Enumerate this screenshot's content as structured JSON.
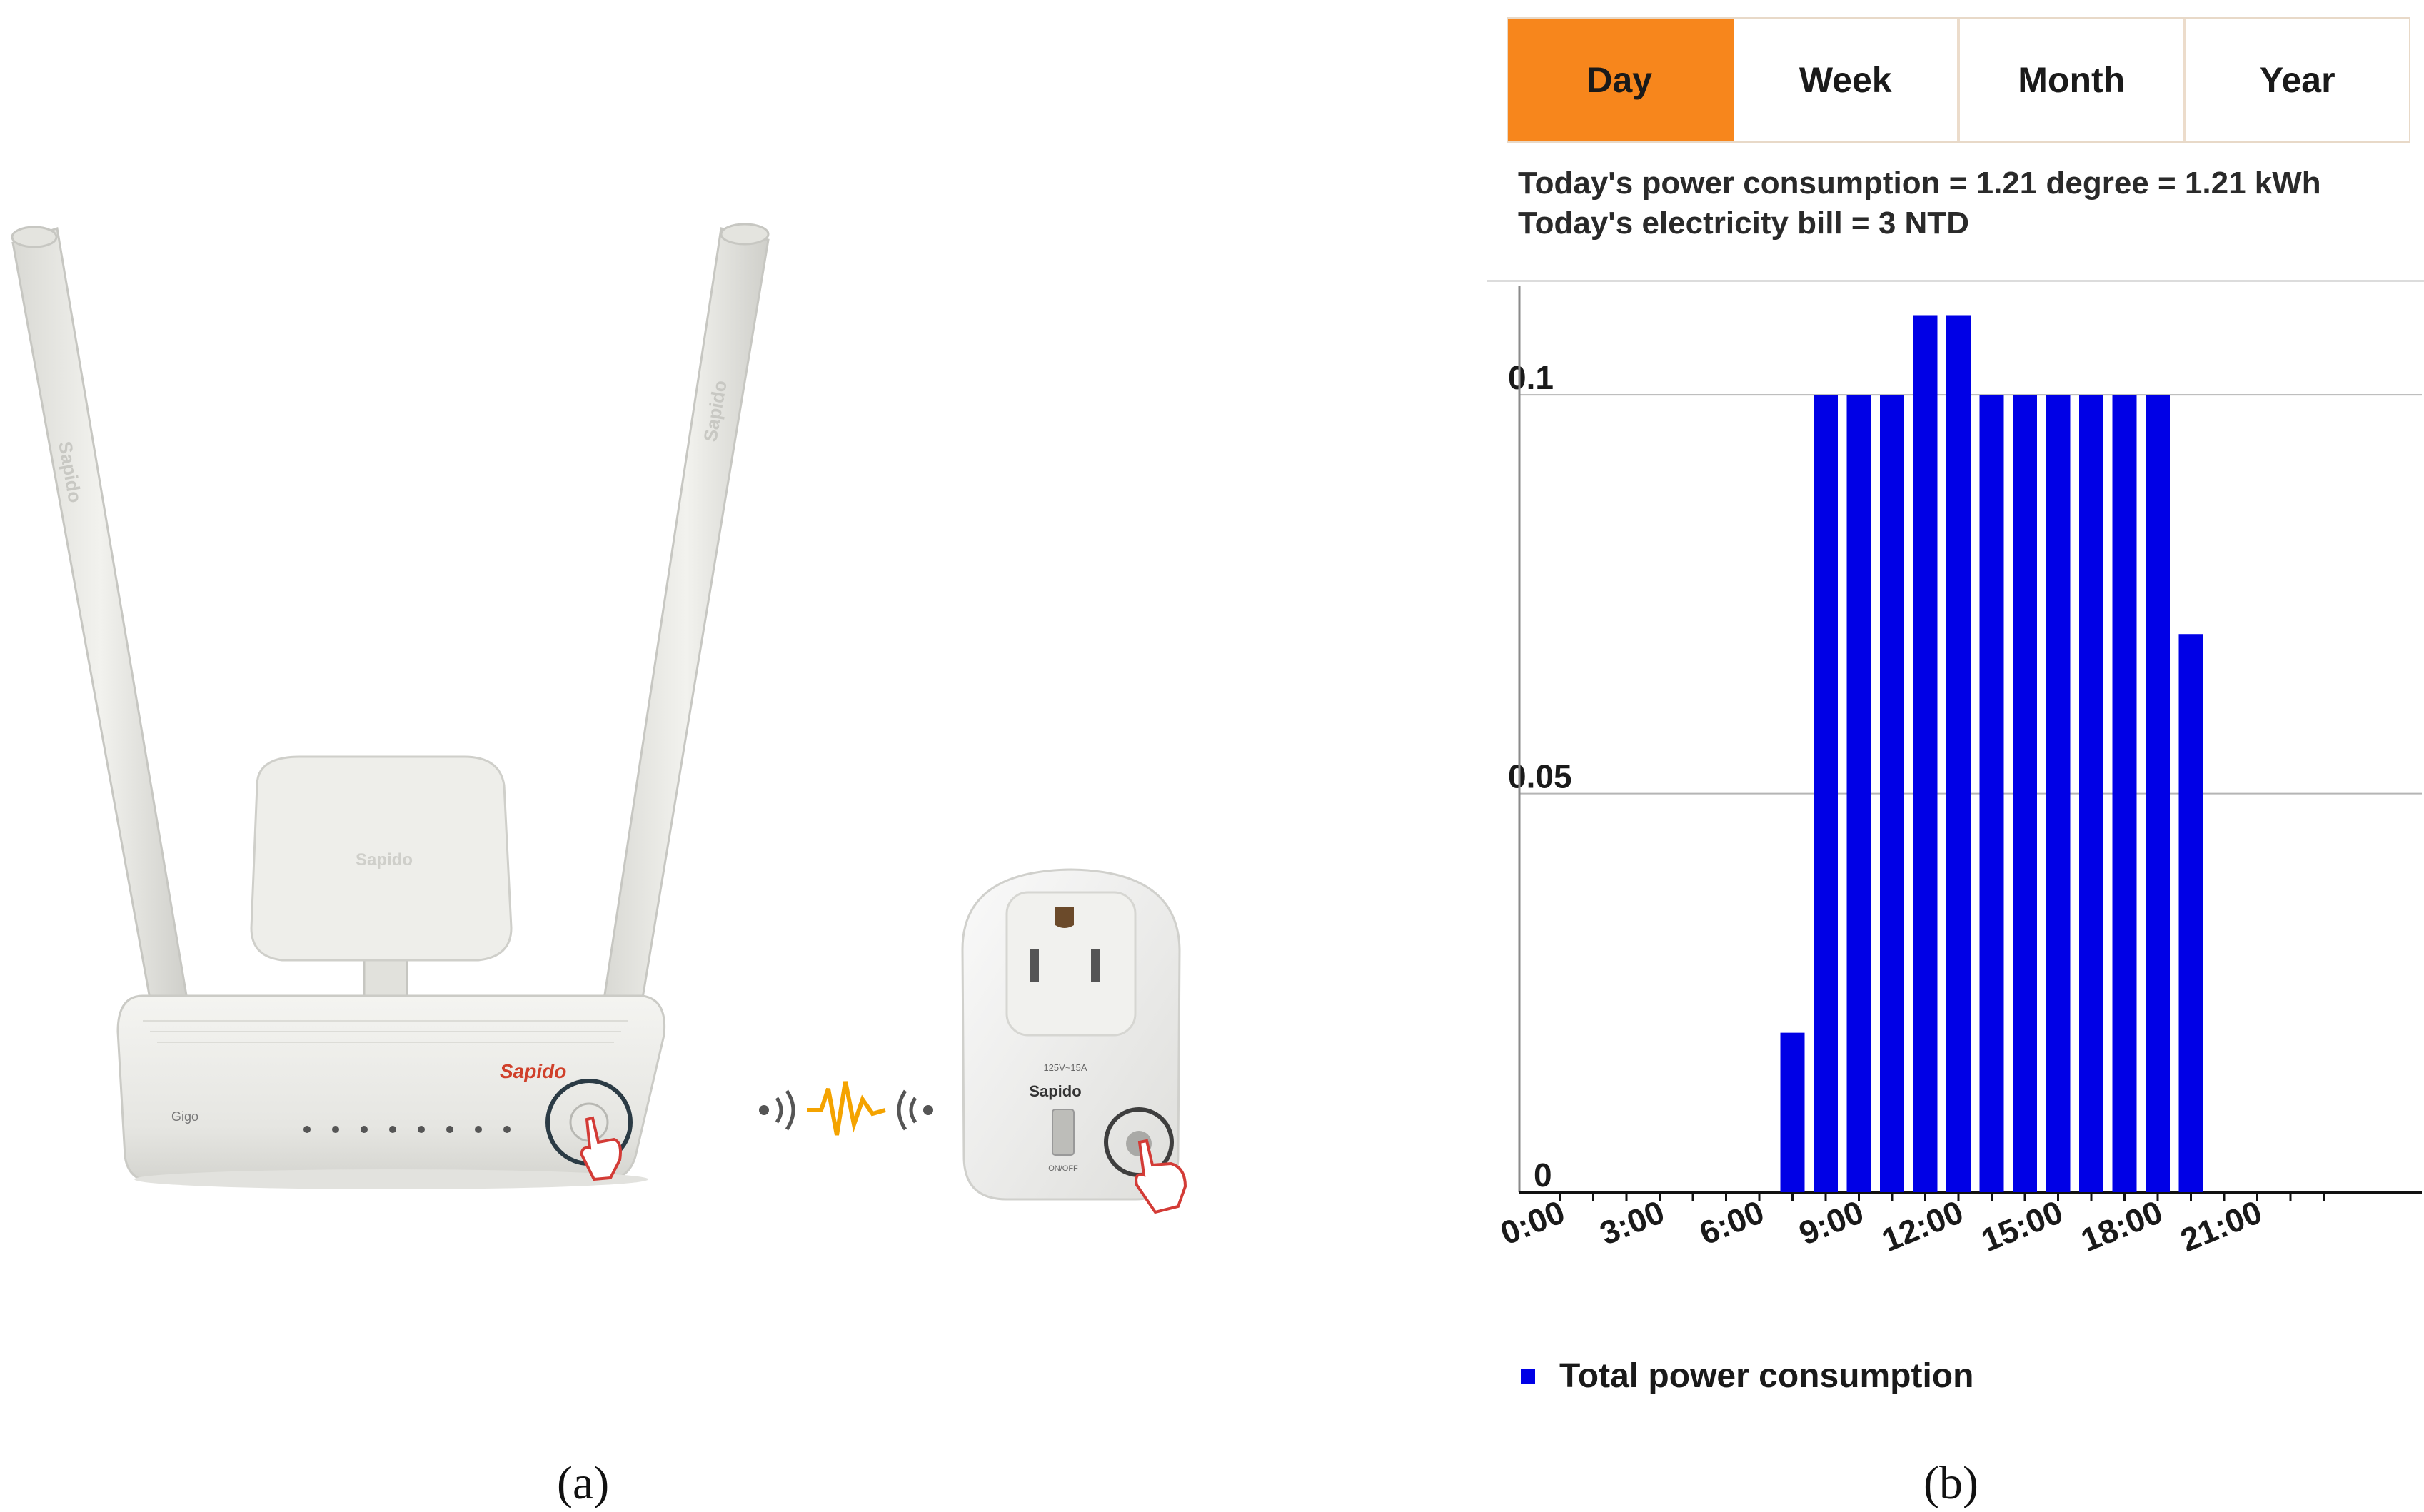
{
  "panel_a": {
    "router_brand": "Sapido",
    "router_model": "Gigo",
    "antenna_brand": "Sapido",
    "plug_brand": "Sapido",
    "plug_rating": "125V~15A",
    "plug_switch_label": "ON/OFF",
    "caption": "(a)"
  },
  "panel_b": {
    "tabs": [
      "Day",
      "Week",
      "Month",
      "Year"
    ],
    "active_tab": "Day",
    "consumption_text": "Today's power consumption = 1.21 degree = 1.21 kWh",
    "bill_text": "Today's electricity bill = 3 NTD",
    "caption": "(b)",
    "colors": {
      "accent": "#f7861c",
      "bar": "#0000e6"
    }
  },
  "chart_data": {
    "type": "bar",
    "categories": [
      "0:00",
      "1:00",
      "2:00",
      "3:00",
      "4:00",
      "5:00",
      "6:00",
      "7:00",
      "8:00",
      "9:00",
      "10:00",
      "11:00",
      "12:00",
      "13:00",
      "14:00",
      "15:00",
      "16:00",
      "17:00",
      "18:00",
      "19:00",
      "20:00",
      "21:00",
      "22:00",
      "23:00"
    ],
    "values": [
      0,
      0,
      0,
      0,
      0,
      0,
      0,
      0.02,
      0.1,
      0.1,
      0.1,
      0.11,
      0.11,
      0.1,
      0.1,
      0.1,
      0.1,
      0.1,
      0.1,
      0.07,
      0,
      0,
      0,
      0
    ],
    "x_tick_labels": [
      "0:00",
      "3:00",
      "6:00",
      "9:00",
      "12:00",
      "15:00",
      "18:00",
      "21:00"
    ],
    "y_ticks": [
      0,
      0.05,
      0.1
    ],
    "y_tick_labels": [
      "0",
      "0.05",
      "0.1"
    ],
    "ylim": [
      0,
      0.113
    ],
    "legend": "Total power consumption",
    "grid": true
  }
}
